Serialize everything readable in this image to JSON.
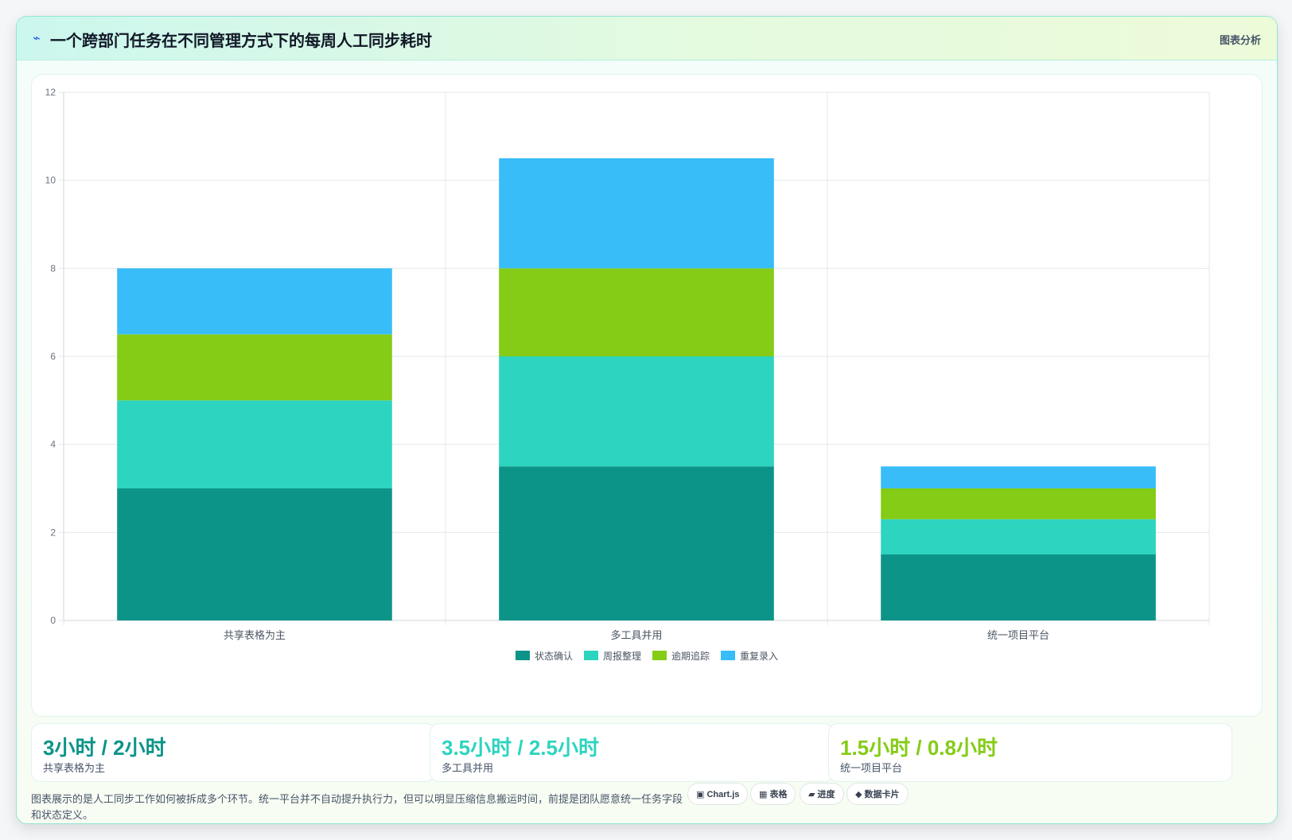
{
  "header": {
    "icon": "⌁",
    "title": "一个跨部门任务在不同管理方式下的每周人工同步耗时",
    "right_label": "图表分析"
  },
  "chart_data": {
    "type": "bar",
    "stacked": true,
    "categories": [
      "共享表格为主",
      "多工具并用",
      "统一项目平台"
    ],
    "series": [
      {
        "name": "状态确认",
        "color": "#0d9488",
        "values": [
          3,
          3.5,
          1.5
        ]
      },
      {
        "name": "周报整理",
        "color": "#2dd4bf",
        "values": [
          2,
          2.5,
          0.8
        ]
      },
      {
        "name": "逾期追踪",
        "color": "#84cc16",
        "values": [
          1.5,
          2,
          0.7
        ]
      },
      {
        "name": "重复录入",
        "color": "#38bdf8",
        "values": [
          1.5,
          2.5,
          0.5
        ]
      }
    ],
    "ylim": [
      0,
      12
    ],
    "yticks": [
      0,
      2,
      4,
      6,
      8,
      10,
      12
    ],
    "legend_position": "bottom",
    "grid": true
  },
  "kpis": [
    {
      "value": "3小时 / 2小时",
      "label": "共享表格为主",
      "color": "#0d9488"
    },
    {
      "value": "3.5小时 / 2.5小时",
      "label": "多工具并用",
      "color": "#2dd4bf"
    },
    {
      "value": "1.5小时 / 0.8小时",
      "label": "统一项目平台",
      "color": "#84cc16"
    }
  ],
  "footnote": "图表展示的是人工同步工作如何被拆成多个环节。统一平台并不自动提升执行力，但可以明显压缩信息搬运时间，前提是团队愿意统一任务字段和状态定义。",
  "tags": [
    "▣ Chart.js",
    "▦ 表格",
    "▰ 进度",
    "◆ 数据卡片"
  ]
}
